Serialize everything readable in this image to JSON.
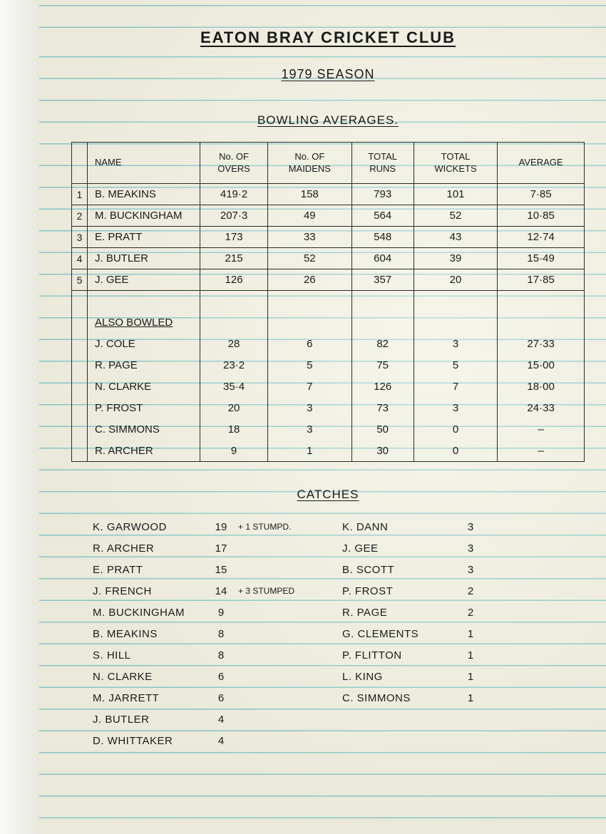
{
  "colors": {
    "ink": "#1a1a1a",
    "paper": "#efeedf",
    "ruled_line": "#8ac8c8",
    "scan_edge": "#fafaf7",
    "background": "#e8e8e0"
  },
  "typography": {
    "title_fontsize": 22,
    "subtitle_fontsize": 18,
    "section_fontsize": 17,
    "body_fontsize": 15,
    "note_fontsize": 12
  },
  "header": {
    "club": "EATON  BRAY   CRICKET  CLUB",
    "season": "1979  SEASON"
  },
  "bowling": {
    "section_title": "BOWLING  AVERAGES.",
    "columns": [
      "",
      "NAME",
      "No. OF\nOVERS",
      "No.  OF\nMAIDENS",
      "TOTAL\nRUNS",
      "TOTAL\nWICKETS",
      "AVERAGE"
    ],
    "main_rows": [
      {
        "idx": "1",
        "name": "B. MEAKINS",
        "overs": "419·2",
        "maidens": "158",
        "runs": "793",
        "wickets": "101",
        "avg": "7·85"
      },
      {
        "idx": "2",
        "name": "M. BUCKINGHAM",
        "overs": "207·3",
        "maidens": "49",
        "runs": "564",
        "wickets": "52",
        "avg": "10·85"
      },
      {
        "idx": "3",
        "name": "E. PRATT",
        "overs": "173",
        "maidens": "33",
        "runs": "548",
        "wickets": "43",
        "avg": "12·74"
      },
      {
        "idx": "4",
        "name": "J. BUTLER",
        "overs": "215",
        "maidens": "52",
        "runs": "604",
        "wickets": "39",
        "avg": "15·49"
      },
      {
        "idx": "5",
        "name": "J.  GEE",
        "overs": "126",
        "maidens": "26",
        "runs": "357",
        "wickets": "20",
        "avg": "17·85"
      }
    ],
    "also_label": "ALSO BOWLED",
    "also_rows": [
      {
        "name": "J. COLE",
        "overs": "28",
        "maidens": "6",
        "runs": "82",
        "wickets": "3",
        "avg": "27·33"
      },
      {
        "name": "R. PAGE",
        "overs": "23·2",
        "maidens": "5",
        "runs": "75",
        "wickets": "5",
        "avg": "15·00"
      },
      {
        "name": "N. CLARKE",
        "overs": "35·4",
        "maidens": "7",
        "runs": "126",
        "wickets": "7",
        "avg": "18·00"
      },
      {
        "name": "P. FROST",
        "overs": "20",
        "maidens": "3",
        "runs": "73",
        "wickets": "3",
        "avg": "24·33"
      },
      {
        "name": "C. SIMMONS",
        "overs": "18",
        "maidens": "3",
        "runs": "50",
        "wickets": "0",
        "avg": "–"
      },
      {
        "name": "R. ARCHER",
        "overs": "9",
        "maidens": "1",
        "runs": "30",
        "wickets": "0",
        "avg": "–"
      }
    ]
  },
  "catches": {
    "section_title": "CATCHES",
    "left": [
      {
        "name": "K. GARWOOD",
        "val": "19",
        "note": "+ 1 STUMPD."
      },
      {
        "name": "R. ARCHER",
        "val": "17",
        "note": ""
      },
      {
        "name": "E. PRATT",
        "val": "15",
        "note": ""
      },
      {
        "name": "J. FRENCH",
        "val": "14",
        "note": "+ 3 STUMPED"
      },
      {
        "name": "M. BUCKINGHAM",
        "val": "9",
        "note": ""
      },
      {
        "name": "B. MEAKINS",
        "val": "8",
        "note": ""
      },
      {
        "name": "S. HILL",
        "val": "8",
        "note": ""
      },
      {
        "name": "N. CLARKE",
        "val": "6",
        "note": ""
      },
      {
        "name": "M. JARRETT",
        "val": "6",
        "note": ""
      },
      {
        "name": "J. BUTLER",
        "val": "4",
        "note": ""
      },
      {
        "name": "D. WHITTAKER",
        "val": "4",
        "note": ""
      }
    ],
    "right": [
      {
        "name": "K. DANN",
        "val": "3"
      },
      {
        "name": "J. GEE",
        "val": "3"
      },
      {
        "name": "B. SCOTT",
        "val": "3"
      },
      {
        "name": "P. FROST",
        "val": "2"
      },
      {
        "name": "R. PAGE",
        "val": "2"
      },
      {
        "name": "G. CLEMENTS",
        "val": "1"
      },
      {
        "name": "P. FLITTON",
        "val": "1"
      },
      {
        "name": "L. KING",
        "val": "1"
      },
      {
        "name": "C. SIMMONS",
        "val": "1"
      }
    ]
  }
}
